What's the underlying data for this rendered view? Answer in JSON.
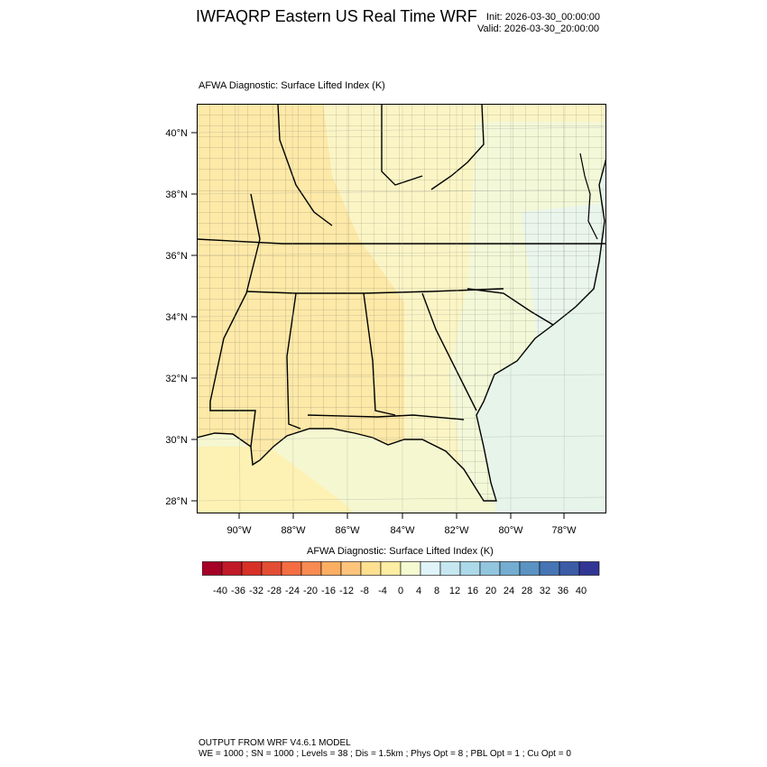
{
  "header": {
    "title": "IWFAQRP Eastern US Real Time WRF",
    "init": "Init: 2026-03-30_00:00:00",
    "valid": "Valid: 2026-03-30_20:00:00"
  },
  "map": {
    "subtitle": "AFWA Diagnostic: Surface Lifted Index   (K)",
    "lat_labels": [
      "40°N",
      "38°N",
      "36°N",
      "34°N",
      "32°N",
      "30°N",
      "28°N"
    ],
    "lon_labels": [
      "90°W",
      "88°W",
      "86°W",
      "84°W",
      "82°W",
      "80°W",
      "78°W"
    ],
    "colors": {
      "land_warm": "#fde9a8",
      "land_mild": "#fbf5c6",
      "land_neutral": "#f3f8d8",
      "ocean_gulf": "#f4f7d0",
      "ocean_atlantic": "#e6f4ea",
      "borders": "#000000"
    }
  },
  "colorbar": {
    "title": "AFWA Diagnostic: Surface Lifted Index  (K)",
    "labels": [
      "-40",
      "-36",
      "-32",
      "-28",
      "-24",
      "-20",
      "-16",
      "-12",
      "-8",
      "-4",
      "0",
      "4",
      "8",
      "12",
      "16",
      "20",
      "24",
      "28",
      "32",
      "36",
      "40"
    ],
    "colors": [
      "#a50026",
      "#c11a28",
      "#d73027",
      "#e34d33",
      "#f46d43",
      "#f88b51",
      "#fdae61",
      "#fec47c",
      "#fee090",
      "#feeda2",
      "#f5fbd0",
      "#e0f3f8",
      "#c6e7f0",
      "#abd9e9",
      "#92c5de",
      "#74add1",
      "#5a92c2",
      "#4575b4",
      "#3b5ba7",
      "#313695"
    ]
  },
  "footer": {
    "line1": "OUTPUT FROM WRF V4.6.1 MODEL",
    "line2": "WE = 1000 ; SN = 1000 ; Levels = 38 ; Dis = 1.5km ; Phys Opt = 8 ; PBL Opt = 1 ; Cu Opt = 0"
  }
}
